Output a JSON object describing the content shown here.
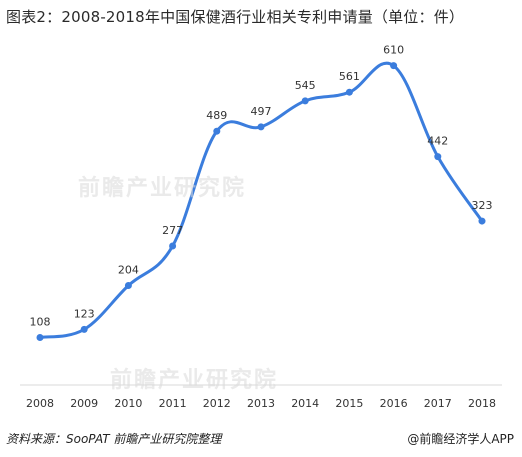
{
  "title": "图表2：2008-2018年中国保健酒行业相关专利申请量（单位：件）",
  "source": "资料来源：SooPAT 前瞻产业研究院整理",
  "brand": "@前瞻经济学人APP",
  "watermark": "前瞻产业研究院",
  "chart_data": {
    "type": "line",
    "title": "图表2：2008-2018年中国保健酒行业相关专利申请量（单位：件）",
    "xlabel": "",
    "ylabel": "",
    "categories": [
      "2008",
      "2009",
      "2010",
      "2011",
      "2012",
      "2013",
      "2014",
      "2015",
      "2016",
      "2017",
      "2018"
    ],
    "values": [
      108,
      123,
      204,
      277,
      489,
      497,
      545,
      561,
      610,
      442,
      323
    ],
    "ylim": [
      0,
      650
    ],
    "grid": false,
    "smooth": true,
    "color": "#3b7ddd"
  }
}
